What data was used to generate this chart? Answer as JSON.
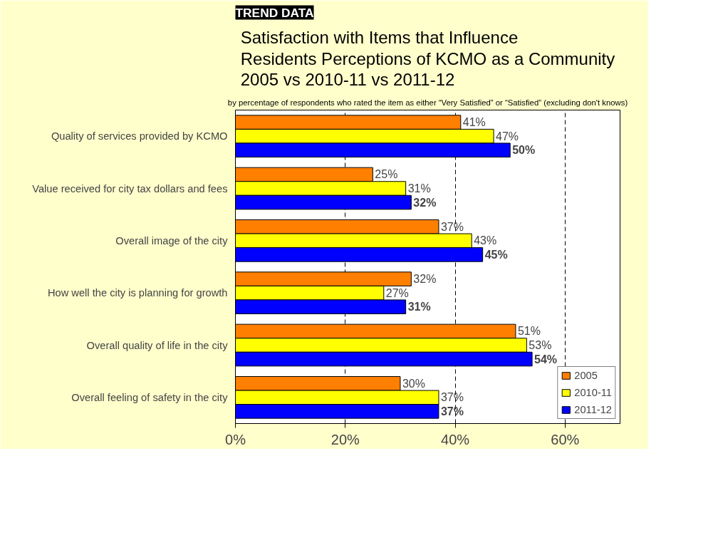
{
  "chart_data": {
    "type": "bar",
    "orientation": "horizontal",
    "title": "Satisfaction with Items that Influence\nResidents Perceptions of KCMO as a Community\n2005 vs 2010-11 vs 2011-12",
    "subtitle": "by percentage of respondents who rated the item as either “Very Satisfied” or “Satisfied” (excluding don't knows)",
    "annotations": [
      "TREND DATA"
    ],
    "categories": [
      "Quality of services provided by KCMO",
      "Value received for city tax dollars and fees",
      "Overall image of the city",
      "How well the city is planning for growth",
      "Overall quality of life in the city",
      "Overall feeling of safety in the city"
    ],
    "series": [
      {
        "name": "2005",
        "color": "#ff7f00",
        "values": [
          41,
          25,
          37,
          32,
          51,
          30
        ],
        "value_labels": [
          "41%",
          "25%",
          "37%",
          "32%",
          "51%",
          "30%"
        ]
      },
      {
        "name": "2010-11",
        "color": "#ffff00",
        "values": [
          47,
          31,
          43,
          27,
          53,
          37
        ],
        "value_labels": [
          "47%",
          "31%",
          "43%",
          "27%",
          "53%",
          "37%"
        ]
      },
      {
        "name": "2011-12",
        "color": "#0000ff",
        "values": [
          50,
          32,
          45,
          31,
          54,
          37
        ],
        "value_labels": [
          "50%",
          "32%",
          "45%",
          "31%",
          "54%",
          "37%"
        ]
      }
    ],
    "xlim": [
      0,
      70
    ],
    "xticks": [
      {
        "value": 0,
        "label": "0%"
      },
      {
        "value": 20,
        "label": "20%"
      },
      {
        "value": 40,
        "label": "40%"
      },
      {
        "value": 60,
        "label": "60%"
      }
    ],
    "grid": "x",
    "legend": "bottom right"
  }
}
